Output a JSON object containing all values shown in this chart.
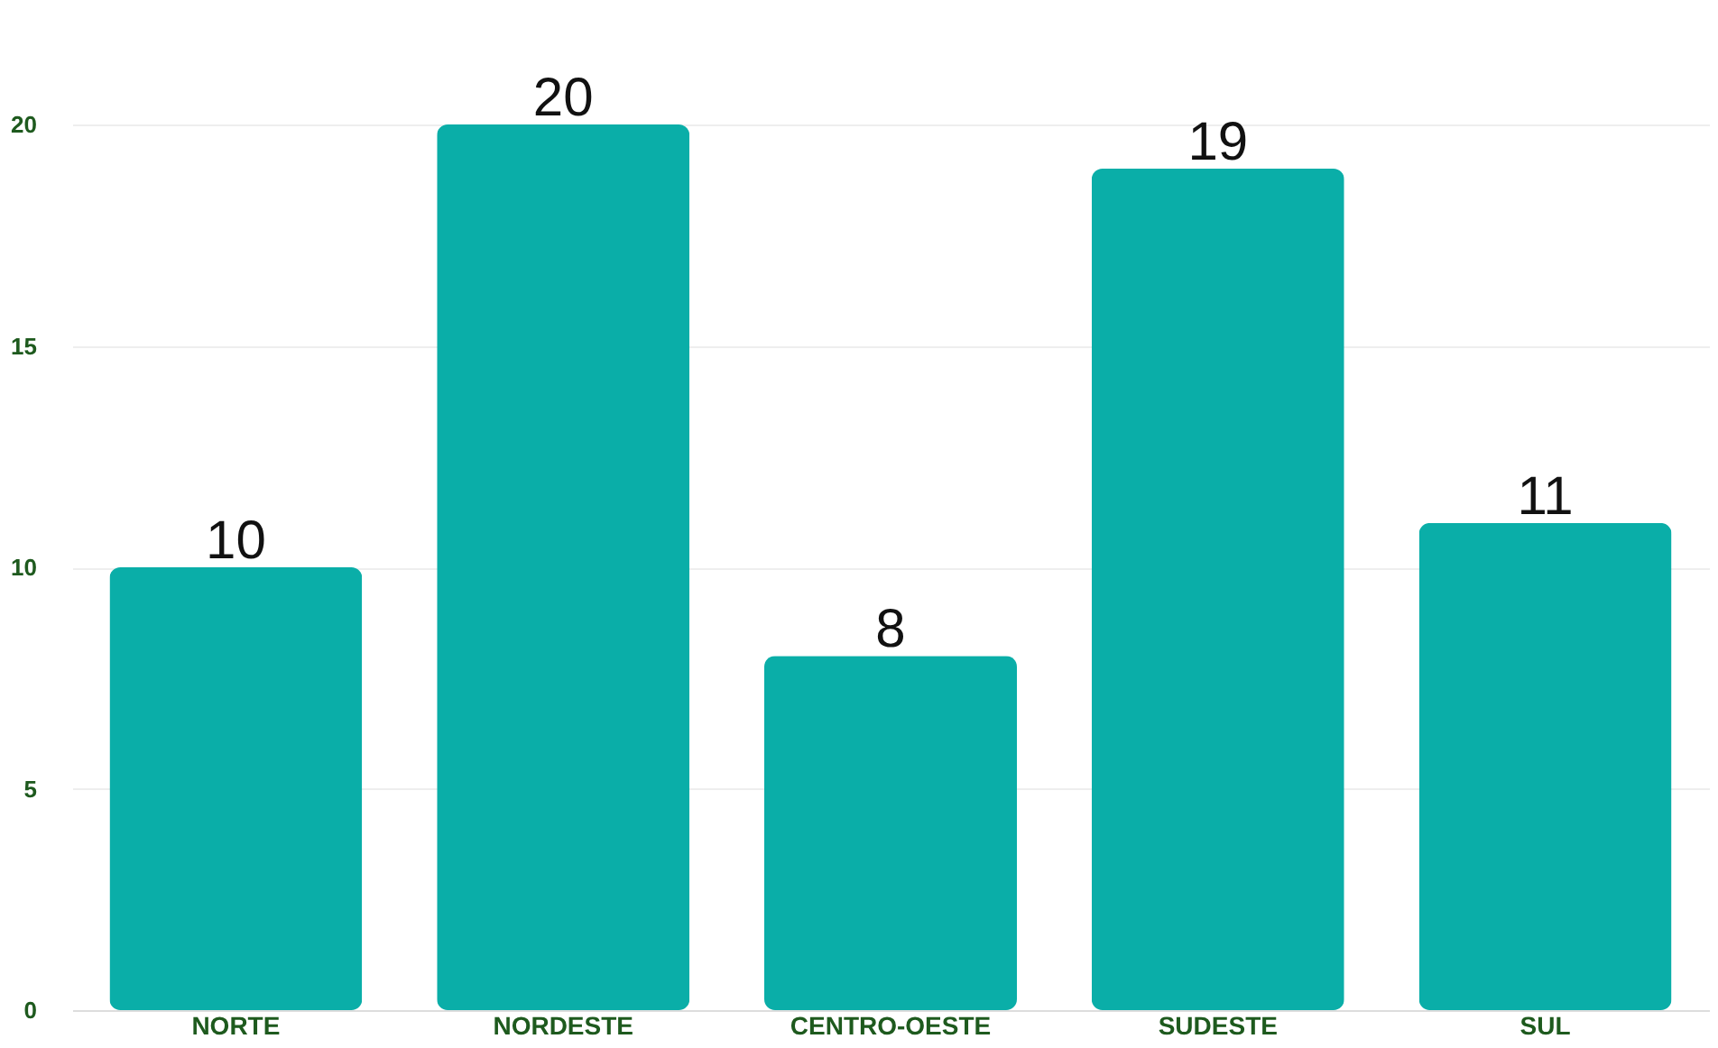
{
  "chart_data": {
    "type": "bar",
    "categories": [
      "NORTE",
      "NORDESTE",
      "CENTRO-OESTE",
      "SUDESTE",
      "SUL"
    ],
    "series": [
      {
        "color": "#0aaea8",
        "values": [
          10,
          20,
          8,
          19,
          11
        ]
      }
    ],
    "ylim": [
      0,
      20
    ],
    "yticks": [
      0,
      5,
      10,
      15,
      20
    ],
    "grid": "y",
    "data_labels": true
  }
}
